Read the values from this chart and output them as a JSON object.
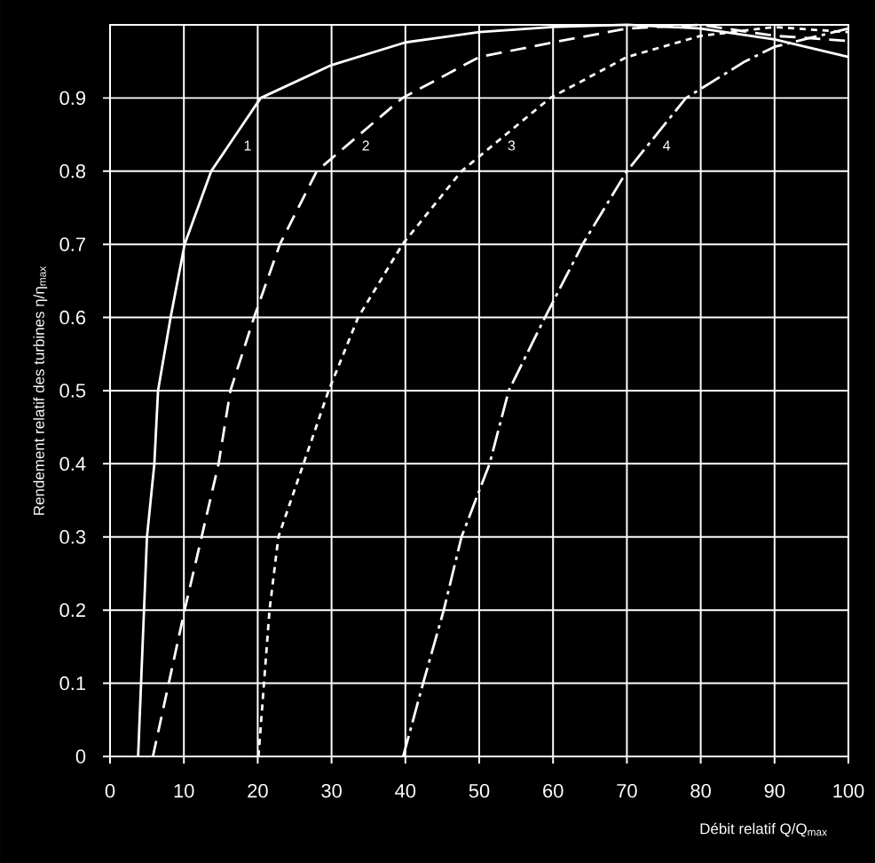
{
  "chart_data": {
    "type": "line",
    "xlabel": "Débit relatif Q/Q$_{max}$",
    "ylabel": "Rendement relatif des turbines η/η$_{max}$",
    "xlim": [
      0,
      100
    ],
    "xticks": [
      0,
      10,
      20,
      30,
      40,
      50,
      60,
      70,
      80,
      90,
      100
    ],
    "ylim": [
      0,
      1
    ],
    "yticks": [
      0,
      0.1,
      0.2,
      0.3,
      0.4,
      0.5,
      0.6,
      0.7,
      0.8,
      0.9
    ],
    "grid": true,
    "marker": "none",
    "series": [
      {
        "name": "1",
        "color": "#ffffff",
        "line_style": "solid",
        "x": [
          3.8,
          5.0,
          6.0,
          6.5,
          8.2,
          10.1,
          13.7,
          20.4,
          30,
          40,
          50,
          60,
          70,
          80,
          90,
          100
        ],
        "values": [
          0,
          0.3,
          0.4,
          0.5,
          0.6,
          0.7,
          0.8,
          0.9,
          0.945,
          0.976,
          0.99,
          0.997,
          1.0,
          0.995,
          0.98,
          0.956
        ]
      },
      {
        "name": "2",
        "color": "#ffffff",
        "line_style": "dashed",
        "x": [
          5.8,
          10.1,
          14.7,
          16.3,
          19.5,
          23,
          28,
          39.6,
          50,
          60,
          70,
          80,
          90,
          100
        ],
        "values": [
          0,
          0.2,
          0.4,
          0.5,
          0.6,
          0.7,
          0.8,
          0.9,
          0.956,
          0.976,
          0.995,
          1.0,
          0.985,
          0.978
        ]
      },
      {
        "name": "3",
        "color": "#ffffff",
        "line_style": "dotted",
        "x": [
          20.1,
          21.6,
          22.8,
          26.2,
          29.6,
          33.6,
          39.6,
          47.6,
          59.6,
          70,
          80,
          90,
          100
        ],
        "values": [
          0,
          0.2,
          0.3,
          0.4,
          0.5,
          0.6,
          0.7,
          0.8,
          0.9,
          0.956,
          0.985,
          0.997,
          0.99
        ]
      },
      {
        "name": "4",
        "color": "#ffffff",
        "line_style": "dashdot",
        "x": [
          39.7,
          42.4,
          45.2,
          47.6,
          51.4,
          54,
          58.9,
          64,
          70,
          78,
          86,
          90,
          100
        ],
        "values": [
          0,
          0.1,
          0.2,
          0.3,
          0.4,
          0.5,
          0.6,
          0.7,
          0.8,
          0.9,
          0.95,
          0.97,
          0.995
        ]
      }
    ]
  }
}
